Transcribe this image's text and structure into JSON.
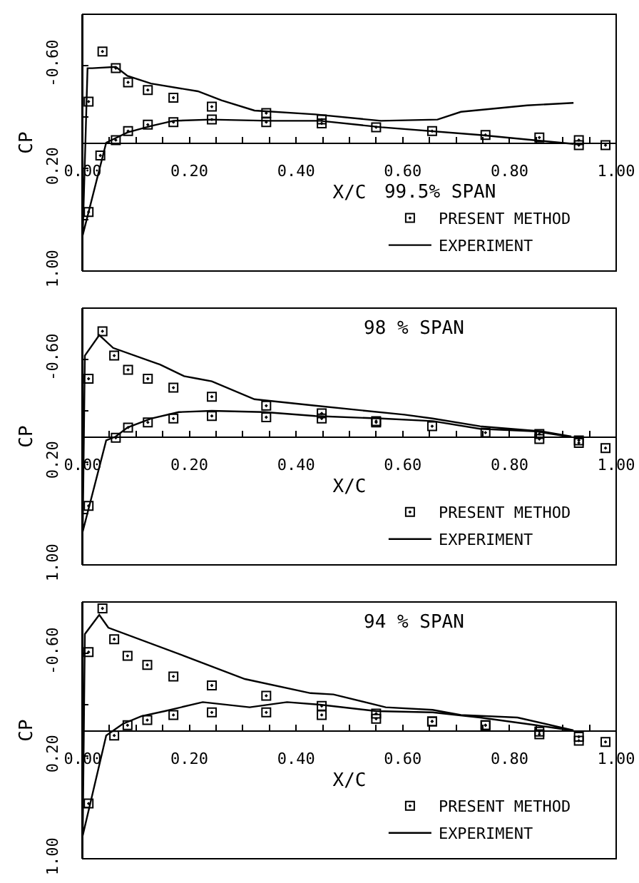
{
  "chart_data": [
    {
      "type": "line",
      "xlabel": "X/C",
      "ylabel": "CP",
      "legend_title": "99.5% SPAN",
      "legend": "bottom right",
      "xlim": [
        0,
        1.0
      ],
      "ylim": [
        1.0,
        -1.0
      ],
      "xticks": [
        {
          "value": 0,
          "label": "0.00"
        },
        {
          "value": 0.05,
          "label": null
        },
        {
          "value": 0.1,
          "label": null
        },
        {
          "value": 0.15,
          "label": null
        },
        {
          "value": 0.2,
          "label": "0.20"
        },
        {
          "value": 0.25,
          "label": null
        },
        {
          "value": 0.3,
          "label": null
        },
        {
          "value": 0.35,
          "label": null
        },
        {
          "value": 0.4,
          "label": "0.40"
        },
        {
          "value": 0.45,
          "label": null
        },
        {
          "value": 0.5,
          "label": null
        },
        {
          "value": 0.55,
          "label": null
        },
        {
          "value": 0.6,
          "label": "0.60"
        },
        {
          "value": 0.65,
          "label": null
        },
        {
          "value": 0.7,
          "label": null
        },
        {
          "value": 0.75,
          "label": null
        },
        {
          "value": 0.8,
          "label": "0.80"
        },
        {
          "value": 0.85,
          "label": null
        },
        {
          "value": 0.9,
          "label": null
        },
        {
          "value": 0.95,
          "label": null
        },
        {
          "value": 1.0,
          "label": "1.00"
        }
      ],
      "yticks": [
        {
          "value": -0.6,
          "label": "-0.60"
        },
        {
          "value": -0.2,
          "label": null
        },
        {
          "value": 0.2,
          "label": "0.20"
        },
        {
          "value": 0.6,
          "label": null
        },
        {
          "value": 1.0,
          "label": "1.00"
        }
      ],
      "series": [
        {
          "name": "PRESENT METHOD",
          "type": "scatter",
          "marker": "square",
          "color": "#000000",
          "x": [
            0.011,
            0.037,
            0.062,
            0.085,
            0.122,
            0.17,
            0.242,
            0.344,
            0.344,
            0.448,
            0.448,
            0.55,
            0.655,
            0.755,
            0.856,
            0.93,
            0.93,
            0.98,
            0.011,
            0.033,
            0.062,
            0.085,
            0.122,
            0.17,
            0.242
          ],
          "values": [
            -0.32,
            -0.71,
            -0.58,
            -0.47,
            -0.41,
            -0.35,
            -0.28,
            -0.23,
            -0.16,
            -0.18,
            -0.15,
            -0.12,
            -0.09,
            -0.06,
            -0.04,
            -0.02,
            0.02,
            0.02,
            0.54,
            0.1,
            -0.02,
            -0.09,
            -0.14,
            -0.16,
            -0.18
          ]
        },
        {
          "name": "EXPERIMENT",
          "type": "line",
          "color": "#000000",
          "x": [
            0.92,
            0.833,
            0.709,
            0.665,
            0.559,
            0.436,
            0.322,
            0.26,
            0.216,
            0.128,
            0.084,
            0.062,
            0.018,
            0.009,
            0,
            0.044,
            0.084,
            0.128,
            0.17,
            0.24,
            0.35,
            0.445,
            0.56,
            0.745,
            0.92
          ],
          "values": [
            -0.31,
            -0.29,
            -0.24,
            -0.18,
            -0.17,
            -0.22,
            -0.25,
            -0.33,
            -0.4,
            -0.46,
            -0.52,
            -0.59,
            -0.58,
            -0.58,
            0.72,
            0,
            -0.08,
            -0.13,
            -0.17,
            -0.18,
            -0.17,
            -0.17,
            -0.12,
            -0.06,
            0.01
          ]
        }
      ]
    },
    {
      "type": "line",
      "xlabel": "X/C",
      "ylabel": "CP",
      "annotations": [
        "98 % SPAN"
      ],
      "legend": "bottom right",
      "xlim": [
        0,
        1.0
      ],
      "ylim": [
        1.0,
        -1.0
      ],
      "xticks": [
        {
          "value": 0,
          "label": "0.00"
        },
        {
          "value": 0.05,
          "label": null
        },
        {
          "value": 0.1,
          "label": null
        },
        {
          "value": 0.15,
          "label": null
        },
        {
          "value": 0.2,
          "label": "0.20"
        },
        {
          "value": 0.25,
          "label": null
        },
        {
          "value": 0.3,
          "label": null
        },
        {
          "value": 0.35,
          "label": null
        },
        {
          "value": 0.4,
          "label": "0.40"
        },
        {
          "value": 0.45,
          "label": null
        },
        {
          "value": 0.5,
          "label": null
        },
        {
          "value": 0.55,
          "label": null
        },
        {
          "value": 0.6,
          "label": "0.60"
        },
        {
          "value": 0.65,
          "label": null
        },
        {
          "value": 0.7,
          "label": null
        },
        {
          "value": 0.75,
          "label": null
        },
        {
          "value": 0.8,
          "label": "0.80"
        },
        {
          "value": 0.85,
          "label": null
        },
        {
          "value": 0.9,
          "label": null
        },
        {
          "value": 0.95,
          "label": null
        },
        {
          "value": 1.0,
          "label": "1.00"
        }
      ],
      "yticks": [
        {
          "value": -0.6,
          "label": "-0.60"
        },
        {
          "value": -0.2,
          "label": null
        },
        {
          "value": 0.2,
          "label": "0.20"
        },
        {
          "value": 0.6,
          "label": null
        },
        {
          "value": 1.0,
          "label": "1.00"
        }
      ],
      "series": [
        {
          "name": "PRESENT METHOD",
          "type": "scatter",
          "marker": "square",
          "color": "#000000",
          "x": [
            0.011,
            0.037,
            0.059,
            0.085,
            0.122,
            0.17,
            0.242,
            0.344,
            0.448,
            0.55,
            0.655,
            0.755,
            0.856,
            0.93,
            0.98,
            0.011,
            0.062,
            0.085,
            0.122,
            0.17,
            0.242,
            0.344,
            0.448,
            0.55,
            0.856,
            0.93
          ],
          "values": [
            -0.45,
            -0.82,
            -0.63,
            -0.52,
            -0.45,
            -0.38,
            -0.31,
            -0.24,
            -0.18,
            -0.11,
            -0.08,
            -0.03,
            0.02,
            0.05,
            0.09,
            0.54,
            0.01,
            -0.07,
            -0.11,
            -0.14,
            -0.16,
            -0.15,
            -0.14,
            -0.12,
            -0.02,
            0.03
          ]
        },
        {
          "name": "EXPERIMENT",
          "type": "line",
          "color": "#000000",
          "x": [
            0.916,
            0.86,
            0.745,
            0.656,
            0.603,
            0.436,
            0.322,
            0.242,
            0.216,
            0.19,
            0.145,
            0.057,
            0.031,
            0.004,
            0,
            0.044,
            0.062,
            0.084,
            0.128,
            0.18,
            0.242,
            0.34,
            0.436,
            0.56,
            0.656,
            0.745,
            0.85,
            0.91
          ],
          "values": [
            0,
            -0.04,
            -0.08,
            -0.14,
            -0.17,
            -0.24,
            -0.29,
            -0.43,
            -0.45,
            -0.47,
            -0.56,
            -0.69,
            -0.79,
            -0.63,
            0.74,
            0.03,
            0,
            -0.07,
            -0.14,
            -0.19,
            -0.2,
            -0.19,
            -0.16,
            -0.14,
            -0.12,
            -0.06,
            -0.04,
            0
          ]
        }
      ]
    },
    {
      "type": "line",
      "xlabel": "X/C",
      "ylabel": "CP",
      "annotations": [
        "94 % SPAN"
      ],
      "legend": "bottom right",
      "xlim": [
        0,
        1.0
      ],
      "ylim": [
        1.0,
        -1.0
      ],
      "xticks": [
        {
          "value": 0,
          "label": "0.00"
        },
        {
          "value": 0.05,
          "label": null
        },
        {
          "value": 0.1,
          "label": null
        },
        {
          "value": 0.15,
          "label": null
        },
        {
          "value": 0.2,
          "label": "0.20"
        },
        {
          "value": 0.25,
          "label": null
        },
        {
          "value": 0.3,
          "label": null
        },
        {
          "value": 0.35,
          "label": null
        },
        {
          "value": 0.4,
          "label": "0.40"
        },
        {
          "value": 0.45,
          "label": null
        },
        {
          "value": 0.5,
          "label": null
        },
        {
          "value": 0.55,
          "label": null
        },
        {
          "value": 0.6,
          "label": "0.60"
        },
        {
          "value": 0.65,
          "label": null
        },
        {
          "value": 0.7,
          "label": null
        },
        {
          "value": 0.75,
          "label": null
        },
        {
          "value": 0.8,
          "label": "0.80"
        },
        {
          "value": 0.85,
          "label": null
        },
        {
          "value": 0.9,
          "label": null
        },
        {
          "value": 0.95,
          "label": null
        },
        {
          "value": 1.0,
          "label": "1.00"
        }
      ],
      "yticks": [
        {
          "value": -0.6,
          "label": "-0.60"
        },
        {
          "value": -0.2,
          "label": null
        },
        {
          "value": 0.2,
          "label": "0.20"
        },
        {
          "value": 0.6,
          "label": null
        },
        {
          "value": 1.0,
          "label": "1.00"
        }
      ],
      "series": [
        {
          "name": "PRESENT METHOD",
          "type": "scatter",
          "marker": "square",
          "color": "#000000",
          "x": [
            0.011,
            0.037,
            0.059,
            0.084,
            0.121,
            0.17,
            0.242,
            0.344,
            0.448,
            0.55,
            0.655,
            0.755,
            0.856,
            0.93,
            0.98,
            0.011,
            0.059,
            0.084,
            0.121,
            0.17,
            0.242,
            0.344,
            0.448,
            0.55,
            0.655,
            0.755,
            0.856,
            0.93
          ],
          "values": [
            -0.61,
            -0.95,
            -0.71,
            -0.58,
            -0.51,
            -0.42,
            -0.35,
            -0.27,
            -0.19,
            -0.13,
            -0.07,
            -0.04,
            0.01,
            0.05,
            0.09,
            0.57,
            0.04,
            -0.04,
            -0.08,
            -0.12,
            -0.14,
            -0.14,
            -0.12,
            -0.09,
            -0.07,
            -0.04,
            0.03,
            0.08
          ]
        },
        {
          "name": "EXPERIMENT",
          "type": "line",
          "color": "#000000",
          "x": [
            0.92,
            0.815,
            0.709,
            0.656,
            0.568,
            0.47,
            0.427,
            0.304,
            0.19,
            0.048,
            0.031,
            0.004,
            0,
            0.044,
            0.075,
            0.11,
            0.154,
            0.225,
            0.313,
            0.383,
            0.445,
            0.55,
            0.656,
            0.745,
            0.85,
            0.915
          ],
          "values": [
            0,
            -0.1,
            -0.12,
            -0.16,
            -0.18,
            -0.28,
            -0.29,
            -0.4,
            -0.58,
            -0.8,
            -0.9,
            -0.75,
            0.82,
            0.04,
            -0.05,
            -0.11,
            -0.15,
            -0.22,
            -0.18,
            -0.22,
            -0.2,
            -0.15,
            -0.14,
            -0.1,
            -0.04,
            0
          ]
        }
      ]
    }
  ]
}
